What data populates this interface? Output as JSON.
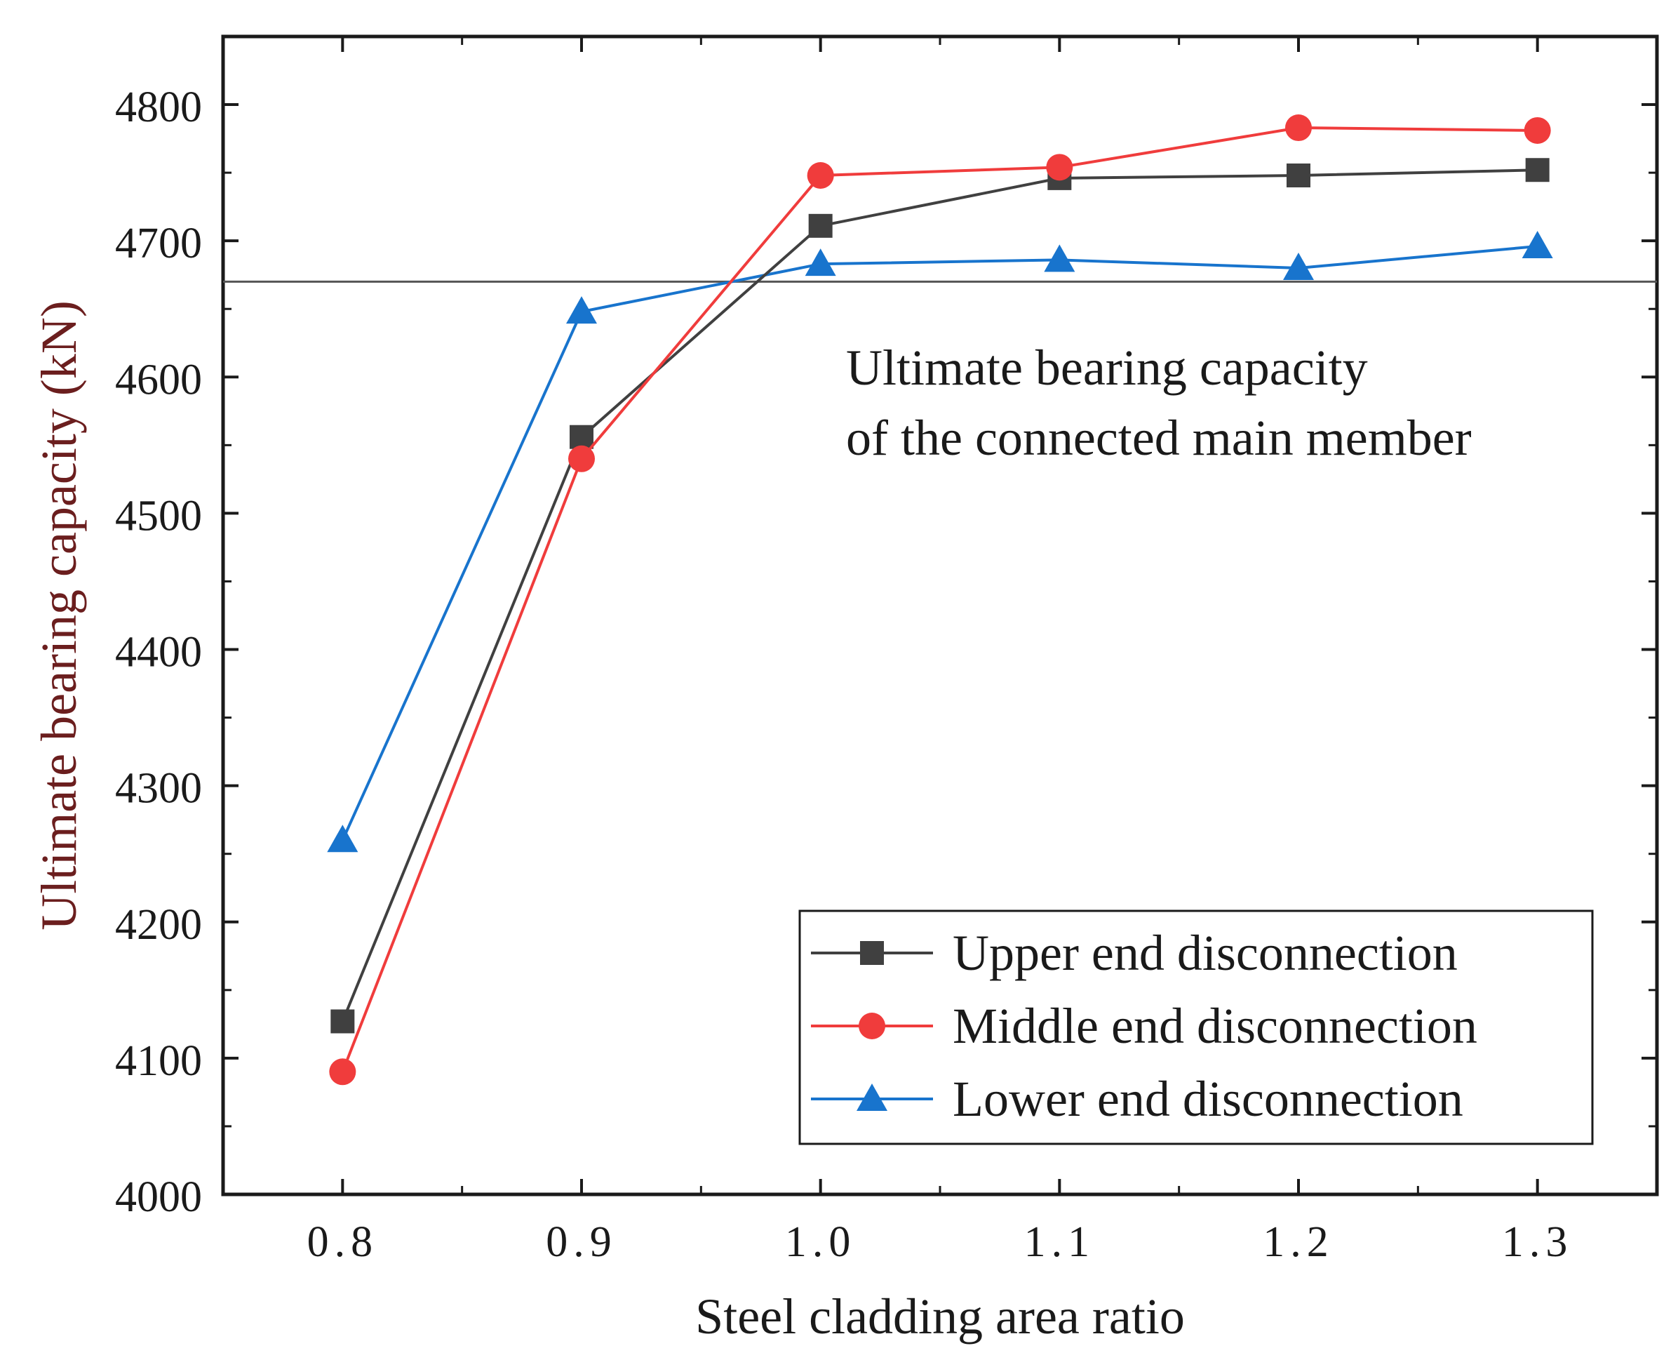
{
  "chart_data": {
    "type": "line",
    "title": "",
    "xlabel": "Steel cladding area ratio",
    "ylabel": "Ultimate bearing capacity (kN)",
    "x": [
      0.8,
      0.9,
      1.0,
      1.1,
      1.2,
      1.3
    ],
    "x_tick_labels": [
      "0.8",
      "0.9",
      "1.0",
      "1.1",
      "1.2",
      "1.3"
    ],
    "xlim": [
      0.75,
      1.35
    ],
    "ylim": [
      4000,
      4850
    ],
    "y_ticks": [
      4000,
      4100,
      4200,
      4300,
      4400,
      4500,
      4600,
      4700,
      4800
    ],
    "y_tick_labels": [
      "4000",
      "4100",
      "4200",
      "4300",
      "4400",
      "4500",
      "4600",
      "4700",
      "4800"
    ],
    "grid": false,
    "series": [
      {
        "name": "Upper end disconnection",
        "marker": "square",
        "color": "#404040",
        "values": [
          4127,
          4556,
          4711,
          4746,
          4748,
          4752
        ]
      },
      {
        "name": "Middle end disconnection",
        "marker": "circle",
        "color": "#f03c3c",
        "values": [
          4090,
          4540,
          4748,
          4754,
          4783,
          4781
        ]
      },
      {
        "name": "Lower end disconnection",
        "marker": "triangle",
        "color": "#1874cd",
        "values": [
          4260,
          4648,
          4683,
          4686,
          4680,
          4696
        ]
      }
    ],
    "reference_line": {
      "y": 4670,
      "color": "#555555",
      "annotation": [
        "Ultimate bearing capacity",
        "of the connected main member"
      ]
    },
    "legend_position": "bottom-right"
  }
}
